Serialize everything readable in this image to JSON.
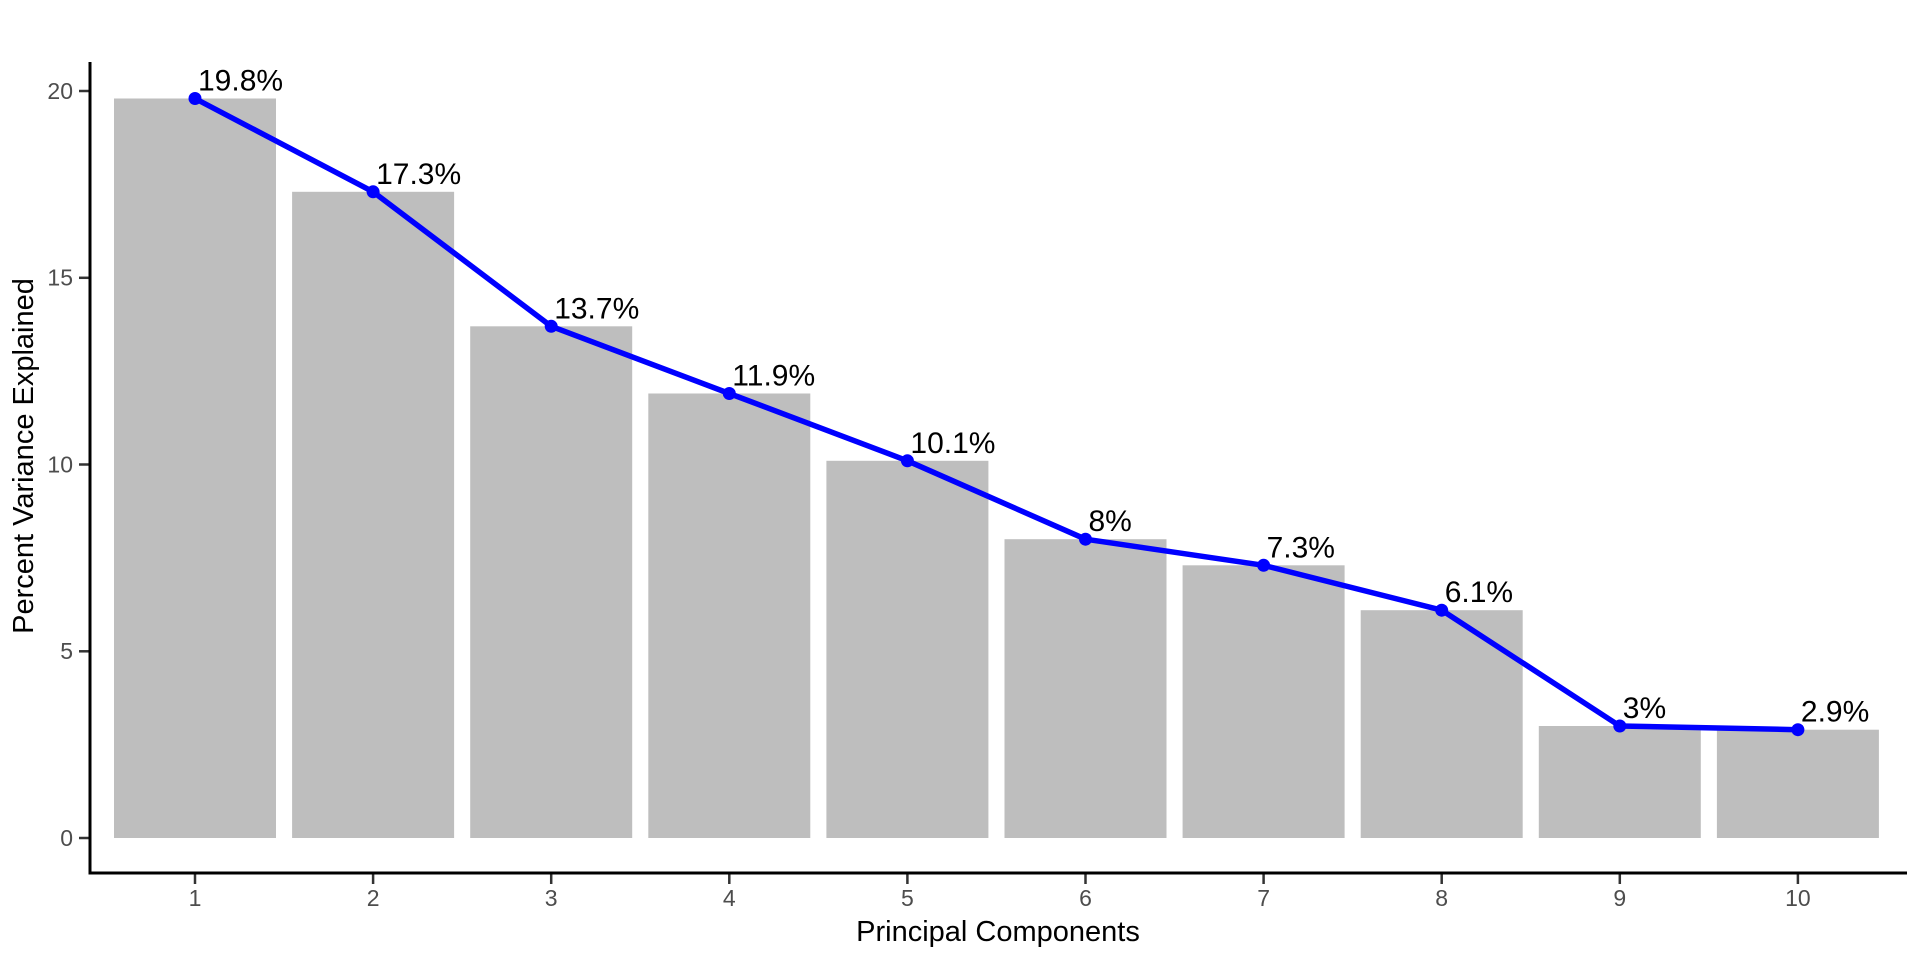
{
  "chart_data": {
    "type": "bar",
    "overlay": "line",
    "title": "",
    "xlabel": "Principal Components",
    "ylabel": "Percent Variance Explained",
    "categories": [
      "1",
      "2",
      "3",
      "4",
      "5",
      "6",
      "7",
      "8",
      "9",
      "10"
    ],
    "series": [
      {
        "name": "percent-variance-explained",
        "values": [
          19.8,
          17.3,
          13.7,
          11.9,
          10.1,
          8,
          7.3,
          6.1,
          3,
          2.9
        ]
      }
    ],
    "point_labels": [
      "19.8%",
      "17.3%",
      "13.7%",
      "11.9%",
      "10.1%",
      "8%",
      "7.3%",
      "6.1%",
      "3%",
      "2.9%"
    ],
    "yticks": [
      0,
      5,
      10,
      15,
      20
    ],
    "ylim": [
      0,
      20.8
    ],
    "grid": false,
    "legend": "none",
    "colors": {
      "bar_fill": "#BEBEBE",
      "line": "#0000FF",
      "point": "#0000FF",
      "axis_line": "#000000",
      "tick_mark": "#333333",
      "tick_label": "#4D4D4D",
      "axis_title": "#000000",
      "value_label": "#000000",
      "background": "#FFFFFF"
    }
  }
}
